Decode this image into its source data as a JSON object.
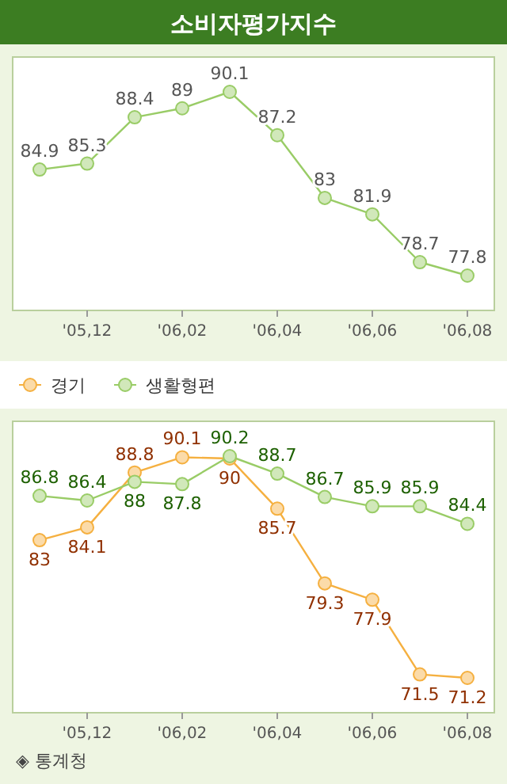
{
  "chart_data": [
    {
      "type": "line",
      "title": "소비자평가지수",
      "categories": [
        null,
        "'05,12",
        null,
        "'06,02",
        null,
        "'06,04",
        null,
        "'06,06",
        null,
        "'06,08"
      ],
      "series": [
        {
          "color": "#99cc66",
          "values": [
            84.9,
            85.3,
            88.4,
            89,
            90.1,
            87.2,
            83,
            81.9,
            78.7,
            77.8
          ]
        }
      ],
      "data_labels": true,
      "marker": "circle",
      "legend": false,
      "grid": false
    },
    {
      "type": "line",
      "categories": [
        null,
        "'05,12",
        null,
        "'06,02",
        null,
        "'06,04",
        null,
        "'06,06",
        null,
        "'06,08"
      ],
      "series": [
        {
          "name": "경기",
          "color": "#f5b040",
          "values": [
            83,
            84.1,
            88.8,
            90.1,
            90,
            85.7,
            79.3,
            77.9,
            71.5,
            71.2
          ]
        },
        {
          "name": "생활형편",
          "color": "#99cc66",
          "values": [
            86.8,
            86.4,
            88,
            87.8,
            90.2,
            88.7,
            86.7,
            85.9,
            85.9,
            84.4
          ]
        }
      ],
      "data_labels": true,
      "marker": "circle",
      "legend": "top left",
      "grid": false,
      "annotations": [
        "◈ 통계청"
      ]
    }
  ]
}
